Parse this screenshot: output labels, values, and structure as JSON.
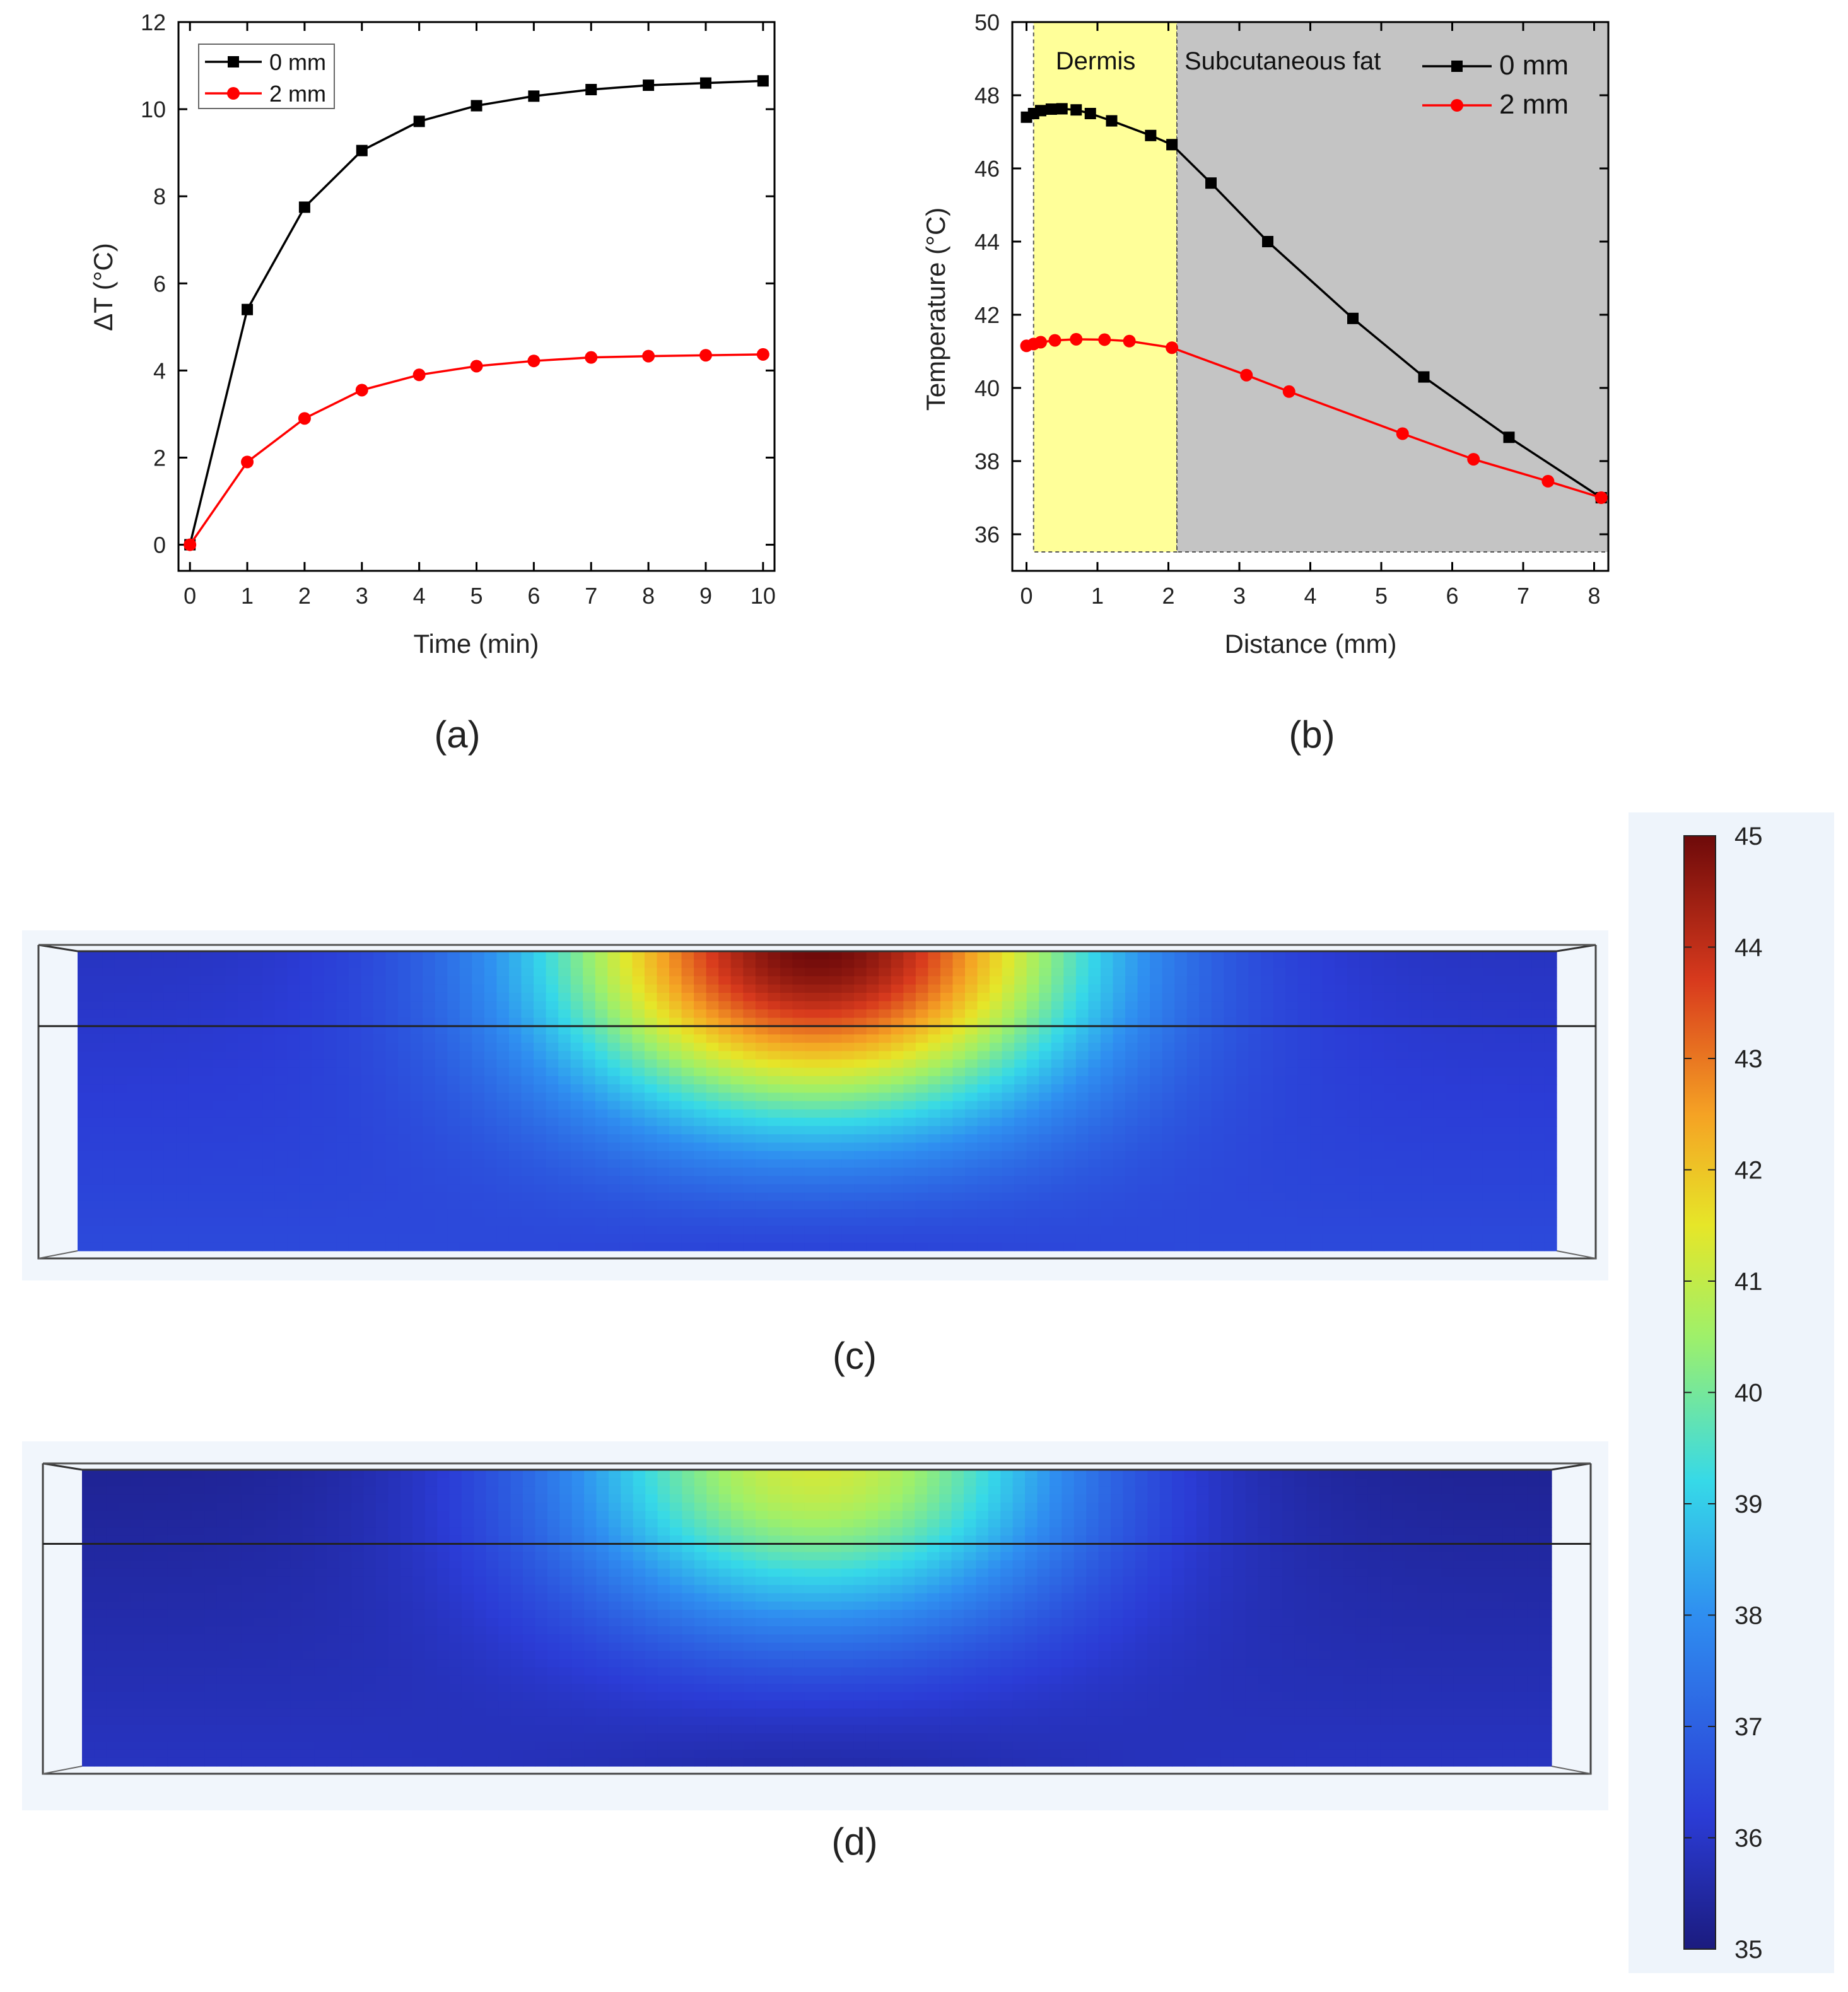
{
  "panel_labels": {
    "a": "(a)",
    "b": "(b)",
    "c": "(c)",
    "d": "(d)"
  },
  "chart_data": [
    {
      "id": "a",
      "type": "line",
      "xlabel": "Time (min)",
      "ylabel": "ΔT (°C)",
      "xlim": [
        -0.2,
        10.2
      ],
      "ylim": [
        -0.6,
        12
      ],
      "xticks": [
        0,
        1,
        2,
        3,
        4,
        5,
        6,
        7,
        8,
        9,
        10
      ],
      "yticks": [
        0,
        2,
        4,
        6,
        8,
        10,
        12
      ],
      "legend": "top-left",
      "grid": false,
      "series": [
        {
          "name": "0 mm",
          "color": "#000000",
          "marker": "square",
          "x": [
            0,
            1,
            2,
            3,
            4,
            5,
            6,
            7,
            8,
            9,
            10
          ],
          "y": [
            0,
            5.4,
            7.75,
            9.05,
            9.72,
            10.08,
            10.3,
            10.45,
            10.55,
            10.6,
            10.65
          ]
        },
        {
          "name": "2 mm",
          "color": "#ff0000",
          "marker": "circle",
          "x": [
            0,
            1,
            2,
            3,
            4,
            5,
            6,
            7,
            8,
            9,
            10
          ],
          "y": [
            0,
            1.9,
            2.9,
            3.55,
            3.9,
            4.1,
            4.22,
            4.3,
            4.33,
            4.35,
            4.37
          ]
        }
      ]
    },
    {
      "id": "b",
      "type": "line",
      "xlabel": "Distance (mm)",
      "ylabel": "Temperature (°C)",
      "xlim": [
        -0.2,
        8.2
      ],
      "ylim": [
        35,
        50
      ],
      "xticks": [
        0,
        1,
        2,
        3,
        4,
        5,
        6,
        7,
        8
      ],
      "yticks": [
        36,
        38,
        40,
        42,
        44,
        46,
        48,
        50
      ],
      "legend": "top-right",
      "grid": false,
      "regions": [
        {
          "label": "Dermis",
          "x0": 0.1,
          "x1": 2.12,
          "color": "#ffff99"
        },
        {
          "label": "Subcutaneous fat",
          "x0": 2.12,
          "x1": 8.2,
          "color": "#c4c4c4"
        }
      ],
      "series": [
        {
          "name": "0 mm",
          "color": "#000000",
          "marker": "square",
          "x": [
            0,
            0.1,
            0.2,
            0.35,
            0.5,
            0.7,
            0.9,
            1.2,
            1.75,
            2.05,
            2.6,
            3.4,
            4.6,
            5.6,
            6.8,
            8.1
          ],
          "y": [
            47.4,
            47.5,
            47.58,
            47.62,
            47.63,
            47.6,
            47.5,
            47.3,
            46.9,
            46.65,
            45.6,
            44.0,
            41.9,
            40.3,
            38.65,
            37.0
          ]
        },
        {
          "name": "2 mm",
          "color": "#ff0000",
          "marker": "circle",
          "x": [
            0,
            0.1,
            0.2,
            0.4,
            0.7,
            1.1,
            1.45,
            2.05,
            3.1,
            3.7,
            5.3,
            6.3,
            7.35,
            8.1
          ],
          "y": [
            41.15,
            41.2,
            41.25,
            41.3,
            41.33,
            41.32,
            41.28,
            41.1,
            40.35,
            39.9,
            38.75,
            38.05,
            37.45,
            37.0
          ]
        }
      ]
    },
    {
      "id": "c",
      "type": "heatmap",
      "colorbar_ticks": [
        45,
        44,
        43,
        42,
        41,
        40,
        39,
        38,
        37,
        36,
        35
      ],
      "zlim": [
        35,
        45
      ],
      "field": {
        "peak": 45.0,
        "base": 35.9,
        "boundary_layers": 2
      }
    },
    {
      "id": "d",
      "type": "heatmap",
      "colorbar_ticks": [
        45,
        44,
        43,
        42,
        41,
        40,
        39,
        38,
        37,
        36,
        35
      ],
      "zlim": [
        35,
        45
      ],
      "field": {
        "peak": 41.2,
        "base": 35.3,
        "boundary_layers": 2
      }
    }
  ]
}
